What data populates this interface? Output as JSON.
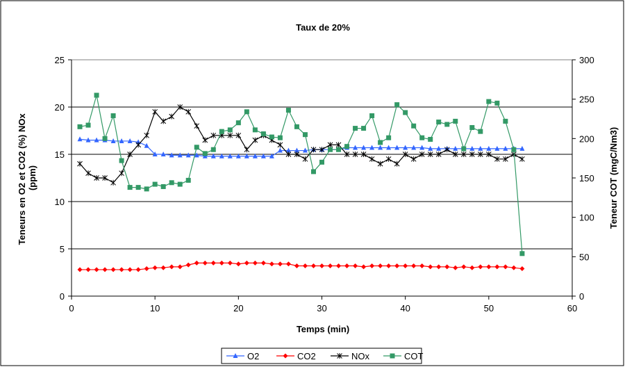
{
  "chart_data": {
    "type": "line",
    "title": "Taux de 20%",
    "xlabel": "Temps (min)",
    "ylabel_left": "Teneurs en O2 et CO2 (%) NOx (ppm)",
    "ylabel_right": "Teneur COT (mgC/Nm3)",
    "xlim": [
      0,
      60
    ],
    "ylim_left": [
      0,
      25
    ],
    "ylim_right": [
      0,
      300
    ],
    "x_ticks": [
      "0",
      "10",
      "20",
      "30",
      "40",
      "50",
      "60"
    ],
    "y_left_ticks": [
      "0",
      "5",
      "10",
      "15",
      "20",
      "25"
    ],
    "y_right_ticks": [
      "0",
      "50",
      "100",
      "150",
      "200",
      "250",
      "300"
    ],
    "grid": "horizontal",
    "legend_position": "bottom",
    "series": [
      {
        "name": "O2",
        "axis": "left",
        "color": "#3366ff",
        "marker": "triangle",
        "x": [
          1,
          2,
          3,
          4,
          5,
          6,
          7,
          8,
          9,
          10,
          11,
          12,
          13,
          14,
          15,
          16,
          17,
          18,
          19,
          20,
          21,
          22,
          23,
          24,
          25,
          26,
          27,
          28,
          29,
          30,
          31,
          32,
          33,
          34,
          35,
          36,
          37,
          38,
          39,
          40,
          41,
          42,
          43,
          44,
          45,
          46,
          47,
          48,
          49,
          50,
          51,
          52,
          53,
          54
        ],
        "values": [
          16.6,
          16.5,
          16.5,
          16.5,
          16.4,
          16.4,
          16.4,
          16.3,
          15.9,
          15.0,
          15.0,
          14.9,
          14.9,
          14.9,
          14.9,
          14.8,
          14.8,
          14.8,
          14.8,
          14.8,
          14.8,
          14.8,
          14.8,
          14.8,
          15.4,
          15.4,
          15.4,
          15.4,
          15.5,
          15.5,
          15.5,
          15.5,
          15.7,
          15.7,
          15.7,
          15.7,
          15.7,
          15.7,
          15.7,
          15.7,
          15.7,
          15.7,
          15.6,
          15.6,
          15.6,
          15.6,
          15.6,
          15.6,
          15.6,
          15.6,
          15.6,
          15.6,
          15.6,
          15.6
        ]
      },
      {
        "name": "CO2",
        "axis": "left",
        "color": "#ff0000",
        "marker": "diamond",
        "x": [
          1,
          2,
          3,
          4,
          5,
          6,
          7,
          8,
          9,
          10,
          11,
          12,
          13,
          14,
          15,
          16,
          17,
          18,
          19,
          20,
          21,
          22,
          23,
          24,
          25,
          26,
          27,
          28,
          29,
          30,
          31,
          32,
          33,
          34,
          35,
          36,
          37,
          38,
          39,
          40,
          41,
          42,
          43,
          44,
          45,
          46,
          47,
          48,
          49,
          50,
          51,
          52,
          53,
          54
        ],
        "values": [
          2.8,
          2.8,
          2.8,
          2.8,
          2.8,
          2.8,
          2.8,
          2.8,
          2.9,
          3.0,
          3.0,
          3.1,
          3.1,
          3.3,
          3.5,
          3.5,
          3.5,
          3.5,
          3.5,
          3.4,
          3.5,
          3.5,
          3.5,
          3.4,
          3.4,
          3.4,
          3.2,
          3.2,
          3.2,
          3.2,
          3.2,
          3.2,
          3.2,
          3.2,
          3.1,
          3.2,
          3.2,
          3.2,
          3.2,
          3.2,
          3.2,
          3.2,
          3.1,
          3.1,
          3.1,
          3.0,
          3.1,
          3.0,
          3.1,
          3.1,
          3.1,
          3.1,
          3.0,
          2.9
        ]
      },
      {
        "name": "NOx",
        "axis": "left",
        "color": "#000000",
        "marker": "star",
        "x": [
          1,
          2,
          3,
          4,
          5,
          6,
          7,
          8,
          9,
          10,
          11,
          12,
          13,
          14,
          15,
          16,
          17,
          18,
          19,
          20,
          21,
          22,
          23,
          24,
          25,
          26,
          27,
          28,
          29,
          30,
          31,
          32,
          33,
          34,
          35,
          36,
          37,
          38,
          39,
          40,
          41,
          42,
          43,
          44,
          45,
          46,
          47,
          48,
          49,
          50,
          51,
          52,
          53,
          54
        ],
        "values": [
          14.0,
          13.0,
          12.5,
          12.5,
          12.0,
          13.0,
          15.0,
          16.0,
          17.0,
          19.5,
          18.5,
          19.0,
          20.0,
          19.5,
          18.0,
          16.5,
          17.0,
          17.0,
          17.0,
          17.0,
          15.5,
          16.5,
          17.0,
          16.5,
          16.0,
          15.0,
          15.0,
          14.5,
          15.5,
          15.5,
          16.0,
          16.0,
          15.0,
          15.0,
          15.0,
          14.5,
          14.0,
          14.5,
          14.0,
          15.0,
          14.5,
          15.0,
          15.0,
          15.0,
          15.5,
          15.0,
          15.0,
          15.0,
          15.0,
          15.0,
          14.5,
          14.5,
          15.0,
          14.5
        ]
      },
      {
        "name": "COT",
        "axis": "right",
        "color": "#339966",
        "marker": "square",
        "x": [
          1,
          2,
          3,
          4,
          5,
          6,
          7,
          8,
          9,
          10,
          11,
          12,
          13,
          14,
          15,
          16,
          17,
          18,
          19,
          20,
          21,
          22,
          23,
          24,
          25,
          26,
          27,
          28,
          29,
          30,
          31,
          32,
          33,
          34,
          35,
          36,
          37,
          38,
          39,
          40,
          41,
          42,
          43,
          44,
          45,
          46,
          47,
          48,
          49,
          50,
          51,
          52,
          53,
          54
        ],
        "values": [
          215,
          217,
          255,
          200,
          229,
          172,
          138,
          138,
          136,
          142,
          139,
          144,
          142,
          147,
          189,
          181,
          186,
          209,
          211,
          220,
          234,
          211,
          206,
          202,
          201,
          236,
          215,
          205,
          158,
          170,
          186,
          186,
          190,
          213,
          213,
          229,
          195,
          201,
          243,
          233,
          216,
          201,
          199,
          221,
          218,
          222,
          187,
          214,
          209,
          247,
          245,
          222,
          186,
          54
        ]
      }
    ]
  }
}
